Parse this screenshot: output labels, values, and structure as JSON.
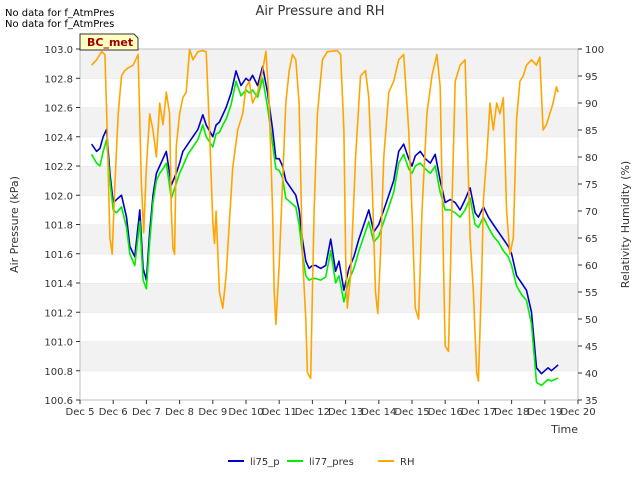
{
  "notices": [
    "No data for f_AtmPres",
    "No data for f_AtmPres"
  ],
  "chart_data": {
    "type": "line",
    "title": "Air Pressure and RH",
    "xlabel": "Time",
    "ylabel": "Air Pressure (kPa)",
    "y2label": "Relativity Humidity (%)",
    "site_badge": "BC_met",
    "xticks": [
      "Dec 5",
      "Dec 6",
      "Dec 7",
      "Dec 8",
      "Dec 9",
      "Dec 10",
      "Dec 11",
      "Dec 12",
      "Dec 13",
      "Dec 14",
      "Dec 15",
      "Dec 16",
      "Dec 17",
      "Dec 18",
      "Dec 19",
      "Dec 20"
    ],
    "xlim": [
      5,
      20
    ],
    "ylim": [
      100.6,
      103.0
    ],
    "yticks": [
      "100.6",
      "100.8",
      "101.0",
      "101.2",
      "101.4",
      "101.6",
      "101.8",
      "102.0",
      "102.2",
      "102.4",
      "102.6",
      "102.8",
      "103.0"
    ],
    "y2lim": [
      35,
      100
    ],
    "y2ticks": [
      "35",
      "40",
      "45",
      "50",
      "55",
      "60",
      "65",
      "70",
      "75",
      "80",
      "85",
      "90",
      "95",
      "100"
    ],
    "grid": "horizontal bands",
    "legend_position": "bottom",
    "series": [
      {
        "name": "li75_p",
        "axis": "left",
        "color": "#0000cc",
        "x": [
          5.35,
          5.5,
          5.6,
          5.7,
          5.8,
          5.9,
          6.0,
          6.1,
          6.25,
          6.4,
          6.5,
          6.65,
          6.8,
          6.9,
          7.0,
          7.1,
          7.2,
          7.3,
          7.4,
          7.5,
          7.6,
          7.75,
          7.9,
          8.0,
          8.1,
          8.25,
          8.4,
          8.55,
          8.7,
          8.8,
          9.0,
          9.1,
          9.2,
          9.3,
          9.4,
          9.55,
          9.7,
          9.85,
          10.0,
          10.1,
          10.2,
          10.35,
          10.5,
          10.65,
          10.8,
          10.9,
          11.0,
          11.1,
          11.2,
          11.35,
          11.5,
          11.6,
          11.7,
          11.8,
          11.9,
          12.0,
          12.1,
          12.25,
          12.4,
          12.55,
          12.7,
          12.8,
          12.95,
          13.1,
          13.25,
          13.4,
          13.55,
          13.7,
          13.85,
          14.0,
          14.15,
          14.3,
          14.45,
          14.6,
          14.75,
          14.9,
          15.0,
          15.1,
          15.25,
          15.4,
          15.55,
          15.7,
          15.85,
          16.0,
          16.15,
          16.3,
          16.45,
          16.6,
          16.75,
          16.9,
          17.0,
          17.15,
          17.3,
          17.45,
          17.6,
          17.75,
          17.9,
          18.0,
          18.15,
          18.3,
          18.45,
          18.6,
          18.75,
          18.9,
          19.0,
          19.1,
          19.2,
          19.3,
          19.4
        ],
        "y": [
          102.35,
          102.3,
          102.32,
          102.4,
          102.45,
          102.15,
          101.95,
          101.97,
          102.0,
          101.85,
          101.65,
          101.58,
          101.9,
          101.5,
          101.42,
          101.75,
          102.0,
          102.15,
          102.2,
          102.25,
          102.3,
          102.07,
          102.15,
          102.22,
          102.3,
          102.35,
          102.4,
          102.45,
          102.55,
          102.48,
          102.4,
          102.48,
          102.5,
          102.55,
          102.6,
          102.7,
          102.85,
          102.75,
          102.8,
          102.78,
          102.82,
          102.75,
          102.88,
          102.7,
          102.45,
          102.25,
          102.25,
          102.2,
          102.1,
          102.05,
          102.0,
          101.9,
          101.7,
          101.55,
          101.5,
          101.52,
          101.52,
          101.5,
          101.52,
          101.7,
          101.48,
          101.55,
          101.35,
          101.5,
          101.58,
          101.7,
          101.8,
          101.9,
          101.75,
          101.8,
          101.9,
          102.0,
          102.1,
          102.3,
          102.35,
          102.25,
          102.2,
          102.27,
          102.3,
          102.25,
          102.22,
          102.28,
          102.1,
          101.95,
          101.97,
          101.95,
          101.9,
          101.97,
          102.05,
          101.88,
          101.85,
          101.92,
          101.85,
          101.8,
          101.75,
          101.7,
          101.65,
          101.6,
          101.45,
          101.4,
          101.35,
          101.2,
          100.82,
          100.78,
          100.8,
          100.82,
          100.8,
          100.82,
          100.84
        ]
      },
      {
        "name": "li77_pres",
        "axis": "left",
        "color": "#00ee00",
        "x": [
          5.35,
          5.5,
          5.6,
          5.7,
          5.8,
          5.9,
          6.0,
          6.1,
          6.25,
          6.4,
          6.5,
          6.65,
          6.8,
          6.9,
          7.0,
          7.1,
          7.2,
          7.3,
          7.4,
          7.5,
          7.6,
          7.75,
          7.9,
          8.0,
          8.1,
          8.25,
          8.4,
          8.55,
          8.7,
          8.8,
          9.0,
          9.1,
          9.2,
          9.3,
          9.4,
          9.55,
          9.7,
          9.85,
          10.0,
          10.1,
          10.2,
          10.35,
          10.5,
          10.65,
          10.8,
          10.9,
          11.0,
          11.1,
          11.2,
          11.35,
          11.5,
          11.6,
          11.7,
          11.8,
          11.9,
          12.0,
          12.1,
          12.25,
          12.4,
          12.55,
          12.7,
          12.8,
          12.95,
          13.1,
          13.25,
          13.4,
          13.55,
          13.7,
          13.85,
          14.0,
          14.15,
          14.3,
          14.45,
          14.6,
          14.75,
          14.9,
          15.0,
          15.1,
          15.25,
          15.4,
          15.55,
          15.7,
          15.85,
          16.0,
          16.15,
          16.3,
          16.45,
          16.6,
          16.75,
          16.9,
          17.0,
          17.15,
          17.3,
          17.45,
          17.6,
          17.75,
          17.9,
          18.0,
          18.15,
          18.3,
          18.45,
          18.6,
          18.75,
          18.9,
          19.0,
          19.1,
          19.2,
          19.3,
          19.4
        ],
        "y": [
          102.28,
          102.22,
          102.2,
          102.3,
          102.38,
          102.1,
          101.9,
          101.88,
          101.92,
          101.78,
          101.6,
          101.52,
          101.82,
          101.42,
          101.36,
          101.68,
          101.95,
          102.1,
          102.15,
          102.18,
          102.22,
          101.98,
          102.08,
          102.15,
          102.2,
          102.28,
          102.33,
          102.38,
          102.48,
          102.4,
          102.33,
          102.42,
          102.43,
          102.48,
          102.52,
          102.62,
          102.78,
          102.68,
          102.72,
          102.7,
          102.72,
          102.67,
          102.8,
          102.6,
          102.35,
          102.18,
          102.17,
          102.12,
          101.98,
          101.95,
          101.92,
          101.8,
          101.6,
          101.45,
          101.42,
          101.43,
          101.43,
          101.42,
          101.44,
          101.62,
          101.4,
          101.45,
          101.27,
          101.42,
          101.5,
          101.62,
          101.72,
          101.82,
          101.68,
          101.72,
          101.82,
          101.92,
          102.02,
          102.22,
          102.28,
          102.18,
          102.15,
          102.2,
          102.22,
          102.18,
          102.15,
          102.2,
          102.02,
          101.9,
          101.9,
          101.88,
          101.85,
          101.9,
          101.98,
          101.8,
          101.78,
          101.85,
          101.78,
          101.72,
          101.68,
          101.62,
          101.58,
          101.52,
          101.38,
          101.32,
          101.28,
          101.12,
          100.72,
          100.7,
          100.72,
          100.74,
          100.73,
          100.74,
          100.75
        ]
      },
      {
        "name": "RH",
        "axis": "right",
        "color": "#ffa500",
        "x": [
          5.35,
          5.5,
          5.65,
          5.75,
          5.82,
          5.9,
          5.97,
          6.05,
          6.15,
          6.25,
          6.35,
          6.45,
          6.6,
          6.75,
          6.85,
          6.92,
          7.0,
          7.1,
          7.2,
          7.3,
          7.4,
          7.5,
          7.6,
          7.7,
          7.75,
          7.8,
          7.85,
          7.9,
          8.0,
          8.1,
          8.2,
          8.3,
          8.4,
          8.55,
          8.7,
          8.8,
          8.9,
          9.0,
          9.05,
          9.1,
          9.2,
          9.3,
          9.4,
          9.5,
          9.6,
          9.75,
          9.9,
          10.0,
          10.1,
          10.2,
          10.35,
          10.5,
          10.6,
          10.7,
          10.8,
          10.85,
          10.9,
          11.0,
          11.1,
          11.2,
          11.3,
          11.4,
          11.5,
          11.6,
          11.7,
          11.8,
          11.85,
          11.95,
          12.0,
          12.05,
          12.15,
          12.3,
          12.45,
          12.6,
          12.75,
          12.85,
          12.95,
          13.0,
          13.05,
          13.15,
          13.3,
          13.45,
          13.6,
          13.7,
          13.8,
          13.9,
          13.97,
          14.05,
          14.15,
          14.3,
          14.45,
          14.6,
          14.75,
          14.9,
          15.0,
          15.1,
          15.2,
          15.3,
          15.45,
          15.6,
          15.75,
          15.85,
          15.95,
          16.0,
          16.1,
          16.2,
          16.3,
          16.45,
          16.6,
          16.75,
          16.85,
          16.95,
          17.0,
          17.1,
          17.15,
          17.25,
          17.35,
          17.45,
          17.55,
          17.65,
          17.75,
          17.85,
          17.95,
          18.05,
          18.15,
          18.25,
          18.35,
          18.45,
          18.6,
          18.75,
          18.85,
          18.95,
          19.05,
          19.15,
          19.25,
          19.35,
          19.4
        ],
        "y": [
          97,
          98,
          99.5,
          99,
          85,
          65,
          62,
          75,
          88,
          95,
          96,
          96.5,
          97,
          99,
          75,
          66,
          78,
          88,
          85,
          80,
          90,
          86,
          92,
          88,
          70,
          63,
          62,
          82,
          88,
          91,
          92,
          100,
          98,
          99.5,
          99.7,
          99.5,
          85,
          68,
          64,
          70,
          55,
          52,
          58,
          68,
          78,
          85,
          88,
          93,
          94,
          90,
          92,
          96,
          99.6,
          90,
          70,
          55,
          49,
          60,
          75,
          90,
          96,
          99,
          98,
          90,
          62,
          50,
          40,
          39,
          55,
          70,
          88,
          98,
          99.5,
          99.6,
          99.7,
          99,
          85,
          62,
          52,
          58,
          80,
          95,
          96,
          91,
          75,
          55,
          51,
          62,
          80,
          92,
          94,
          98,
          99,
          85,
          70,
          52,
          50,
          70,
          88,
          95,
          99,
          93,
          60,
          45,
          44,
          70,
          94,
          97,
          98,
          65,
          55,
          40,
          38.5,
          58,
          72,
          80,
          90,
          85,
          90,
          88,
          91,
          70,
          62,
          65,
          87,
          94,
          95,
          97,
          98,
          97,
          98.5,
          85,
          86,
          88,
          90,
          93,
          92
        ]
      }
    ]
  }
}
